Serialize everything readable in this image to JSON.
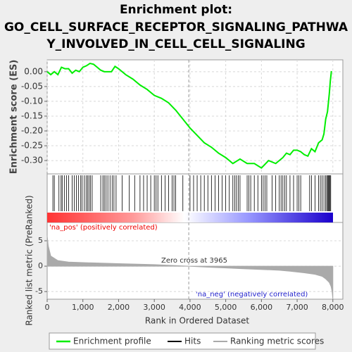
{
  "chart_data": {
    "type": "gsea",
    "title": [
      "Enrichment plot:",
      "GO_CELL_SURFACE_RECEPTOR_SIGNALING_PATHWA",
      "Y_INVOLVED_IN_CELL_CELL_SIGNALING"
    ],
    "es_label": "Enrichment score (ES)",
    "metric_label": "Ranked list metric (PreRanked)",
    "x_label": "Rank in Ordered Dataset",
    "annotations": {
      "pos": "'na_pos' (positively correlated)",
      "zero": "Zero cross at 3965",
      "neg": "'na_neg' (negatively correlated)"
    },
    "zero_cross": 3965,
    "xlim": [
      0,
      8280
    ],
    "xticks": [
      0,
      {
        "value": 1000,
        "label": "1,000"
      },
      {
        "value": 2000,
        "label": "2,000"
      },
      {
        "value": 3000,
        "label": "3,000"
      },
      {
        "value": 4000,
        "label": "4,000"
      },
      {
        "value": 5000,
        "label": "5,000"
      },
      {
        "value": 6000,
        "label": "6,000"
      },
      {
        "value": 7000,
        "label": "7,000"
      },
      {
        "value": 8000,
        "label": "8,000"
      }
    ],
    "ylim": [
      -0.345,
      0.04
    ],
    "yticks": [
      {
        "value": 0,
        "label": "0.00"
      },
      {
        "value": -0.05,
        "label": "-0.05"
      },
      {
        "value": -0.1,
        "label": "-0.10"
      },
      {
        "value": -0.15,
        "label": "-0.15"
      },
      {
        "value": -0.2,
        "label": "-0.20"
      },
      {
        "value": -0.25,
        "label": "-0.25"
      },
      {
        "value": -0.3,
        "label": "-0.30"
      }
    ],
    "y2lim": [
      -6.5,
      8.6
    ],
    "y2ticks": [
      5,
      0,
      -5
    ],
    "grid": true,
    "series": [
      {
        "name": "Enrichment profile",
        "color": "#00ee00",
        "x": [
          0,
          100,
          200,
          300,
          400,
          500,
          600,
          700,
          800,
          900,
          1000,
          1100,
          1200,
          1300,
          1400,
          1500,
          1600,
          1700,
          1800,
          1900,
          2000,
          2200,
          2400,
          2600,
          2800,
          3000,
          3200,
          3400,
          3600,
          3800,
          4000,
          4200,
          4400,
          4600,
          4800,
          5000,
          5200,
          5400,
          5600,
          5800,
          6000,
          6200,
          6400,
          6600,
          6700,
          6800,
          6900,
          7000,
          7100,
          7200,
          7300,
          7400,
          7500,
          7600,
          7700,
          7750,
          7800,
          7850,
          7900,
          7930,
          7960
        ],
        "values": [
          0,
          -0.01,
          0,
          -0.01,
          0.015,
          0.01,
          0.01,
          -0.005,
          0.005,
          0,
          0.015,
          0.02,
          0.028,
          0.025,
          0.015,
          0.005,
          0,
          0,
          0,
          0.018,
          0.01,
          -0.01,
          -0.025,
          -0.045,
          -0.06,
          -0.08,
          -0.09,
          -0.105,
          -0.13,
          -0.16,
          -0.19,
          -0.215,
          -0.24,
          -0.255,
          -0.275,
          -0.29,
          -0.31,
          -0.295,
          -0.31,
          -0.31,
          -0.325,
          -0.3,
          -0.31,
          -0.29,
          -0.275,
          -0.28,
          -0.265,
          -0.265,
          -0.27,
          -0.28,
          -0.285,
          -0.26,
          -0.27,
          -0.24,
          -0.23,
          -0.21,
          -0.16,
          -0.135,
          -0.075,
          -0.03,
          0.002
        ]
      },
      {
        "name": "Hits",
        "color": "#000000",
        "hits": [
          160,
          200,
          330,
          390,
          420,
          480,
          540,
          600,
          700,
          760,
          820,
          880,
          940,
          980,
          1040,
          1090,
          1130,
          1170,
          1210,
          1260,
          1500,
          1560,
          1600,
          1650,
          1700,
          1760,
          1820,
          1870,
          1930,
          2100,
          2300,
          2450,
          2600,
          2700,
          2800,
          2900,
          3000,
          3050,
          3100,
          3200,
          3300,
          3400,
          3500,
          3550,
          3600,
          3800,
          4000,
          4100,
          4200,
          4300,
          4400,
          4500,
          4600,
          4700,
          4800,
          4900,
          5000,
          5100,
          5200,
          5250,
          5300,
          5350,
          5400,
          5600,
          5650,
          5700,
          5800,
          5900,
          6000,
          6050,
          6100,
          6150,
          6300,
          6400,
          6500,
          6550,
          6600,
          6650,
          6700,
          6800,
          6900,
          7000,
          7050,
          7100,
          7350,
          7400,
          7500,
          7600,
          7650,
          7700,
          7750,
          7800,
          7830,
          7860,
          7880,
          7900,
          7920,
          7940
        ]
      },
      {
        "name": "Ranking metric scores",
        "color": "#aaaaaa",
        "axis": "y2",
        "x": [
          0,
          30,
          100,
          300,
          600,
          1000,
          2000,
          3000,
          3965,
          4500,
          5500,
          6500,
          6800,
          7200,
          7500,
          7700,
          7800,
          7900,
          7950,
          7980,
          8000
        ],
        "values": [
          6,
          4,
          2,
          1.1,
          0.8,
          0.7,
          0.5,
          0.3,
          0,
          -0.2,
          -0.5,
          -0.8,
          -1,
          -1.3,
          -1.6,
          -2,
          -2.5,
          -3.2,
          -4,
          -5,
          -6.5
        ]
      }
    ]
  }
}
